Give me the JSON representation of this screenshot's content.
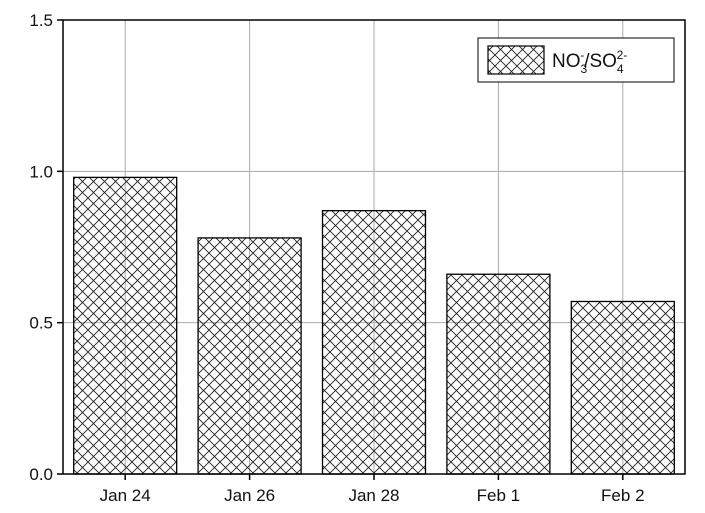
{
  "chart_data": {
    "type": "bar",
    "categories": [
      "Jan 24",
      "Jan 26",
      "Jan 28",
      "Feb 1",
      "Feb 2"
    ],
    "series": [
      {
        "name": "NO3-/SO42-",
        "values": [
          0.98,
          0.78,
          0.87,
          0.66,
          0.57
        ]
      }
    ],
    "ylim": [
      0,
      1.5
    ],
    "yticks": [
      "0.0",
      "0.5",
      "1.0",
      "1.5"
    ],
    "title": "",
    "xlabel": "",
    "ylabel": "",
    "grid": true,
    "legend_position": "top-right",
    "legend": {
      "base1": "NO",
      "sub1": "3",
      "sup1": "-",
      "sep": "/SO",
      "sub2": "4",
      "sup2": "2-"
    },
    "bar_fill": "crosshatch",
    "colors": {
      "bar_edge": "#000000",
      "hatch": "#222222",
      "grid": "#aaaaaa"
    }
  }
}
